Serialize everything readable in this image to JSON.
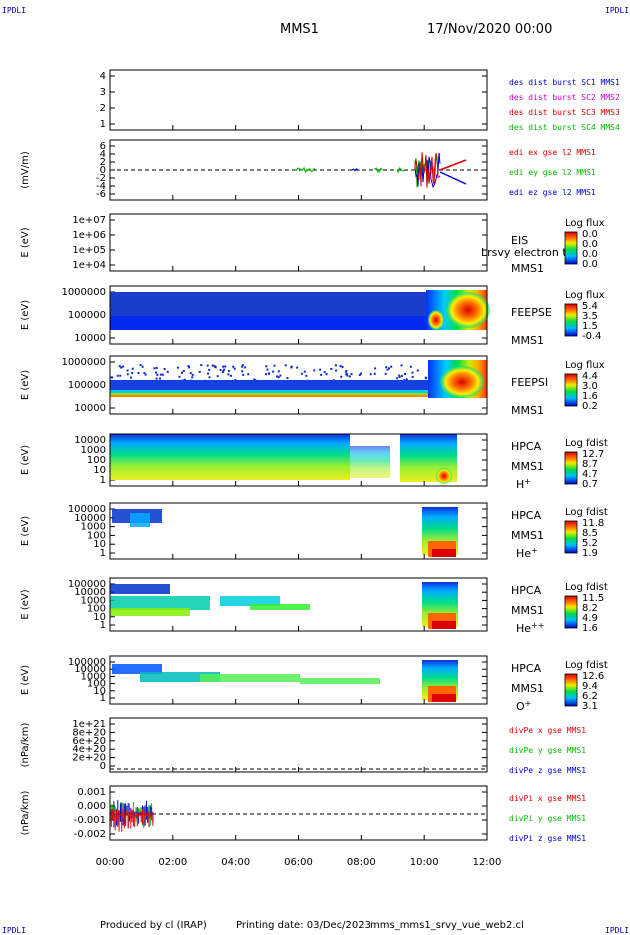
{
  "corners": {
    "tl": "IPDLI",
    "tr": "IPDLI",
    "bl": "IPDLI",
    "br": "IPDLI"
  },
  "header": {
    "spacecraft": "MMS1",
    "datetime": "17/Nov/2020 00:00"
  },
  "footer": {
    "produced": "Produced by cl (IRAP)",
    "printing": "Printing date: 03/Dec/2023",
    "file": "mms_mms1_srvy_vue_web2.cl"
  },
  "chart_data": [
    {
      "type": "line",
      "panel": "des-dist-burst",
      "ylabel": "",
      "yticks": [
        "4",
        "3",
        "2",
        "1"
      ],
      "legend": [
        {
          "name": "des dist burst SC1 MMS1",
          "color": "#0000cc"
        },
        {
          "name": "des dist burst SC2 MMS2",
          "color": "#cc00cc"
        },
        {
          "name": "des dist burst SC3 MMS3",
          "color": "#dd0000"
        },
        {
          "name": "des dist burst SC4 MMS4",
          "color": "#00bb00"
        }
      ]
    },
    {
      "type": "line",
      "panel": "edi-e-field",
      "ylabel": "(mV/m)",
      "yticks": [
        "6",
        "4",
        "2",
        "0",
        "-2",
        "-4",
        "-6"
      ],
      "legend": [
        {
          "name": "edi ex gse l2 MMS1",
          "color": "#dd0000"
        },
        {
          "name": "edi ey gse l2 MMS1",
          "color": "#00bb00"
        },
        {
          "name": "edi ez gse l2 MMS1",
          "color": "#0000cc"
        }
      ]
    },
    {
      "type": "heatmap",
      "panel": "eis",
      "ylabel": "E (eV)",
      "yticks": [
        "1e+07",
        "1e+06",
        "1e+05",
        "1e+04"
      ],
      "instrument": [
        "EIS",
        "MMS1"
      ],
      "overlay": "Lrsvy electron to",
      "cb_title": "Log flux",
      "cb_values": [
        "0.0",
        "0.0",
        "0.0",
        "0.0"
      ]
    },
    {
      "type": "heatmap",
      "panel": "feepse",
      "ylabel": "E (eV)",
      "yticks": [
        "1000000",
        "100000",
        "10000"
      ],
      "instrument": [
        "FEEPSE",
        "MMS1"
      ],
      "cb_title": "Log flux",
      "cb_values": [
        "5.4",
        "3.5",
        "1.5",
        "-0.4"
      ]
    },
    {
      "type": "heatmap",
      "panel": "feepsi",
      "ylabel": "E (eV)",
      "yticks": [
        "1000000",
        "100000",
        "10000"
      ],
      "instrument": [
        "FEEPSI",
        "MMS1"
      ],
      "cb_title": "Log flux",
      "cb_values": [
        "4.4",
        "3.0",
        "1.6",
        "0.2"
      ]
    },
    {
      "type": "heatmap",
      "panel": "hpca-h",
      "ylabel": "E (eV)",
      "yticks": [
        "10000",
        "1000",
        "100",
        "10",
        "1"
      ],
      "instrument": [
        "HPCA",
        "MMS1"
      ],
      "species": "H",
      "species_sup": "+",
      "cb_title": "Log fdist",
      "cb_values": [
        "12.7",
        "8.7",
        "4.7",
        "0.7"
      ]
    },
    {
      "type": "heatmap",
      "panel": "hpca-he1",
      "ylabel": "E (eV)",
      "yticks": [
        "100000",
        "10000",
        "1000",
        "100",
        "10",
        "1"
      ],
      "instrument": [
        "HPCA",
        "MMS1"
      ],
      "species": "He",
      "species_sup": "+",
      "cb_title": "Log fdist",
      "cb_values": [
        "11.8",
        "8.5",
        "5.2",
        "1.9"
      ]
    },
    {
      "type": "heatmap",
      "panel": "hpca-he2",
      "ylabel": "E (eV)",
      "yticks": [
        "100000",
        "10000",
        "1000",
        "100",
        "10",
        "1"
      ],
      "instrument": [
        "HPCA",
        "MMS1"
      ],
      "species": "He",
      "species_sup": "++",
      "cb_title": "Log fdist",
      "cb_values": [
        "11.5",
        "8.2",
        "4.9",
        "1.6"
      ]
    },
    {
      "type": "heatmap",
      "panel": "hpca-o",
      "ylabel": "E (eV)",
      "yticks": [
        "100000",
        "10000",
        "1000",
        "100",
        "10",
        "1"
      ],
      "instrument": [
        "HPCA",
        "MMS1"
      ],
      "species": "O",
      "species_sup": "+",
      "cb_title": "Log fdist",
      "cb_values": [
        "12.6",
        "9.4",
        "6.2",
        "3.1"
      ]
    },
    {
      "type": "line",
      "panel": "divpe",
      "ylabel": "(nPa/km)",
      "yticks": [
        "1e+21",
        "8e+20",
        "6e+20",
        "4e+20",
        "2e+20",
        "0"
      ],
      "legend": [
        {
          "name": "divPe x gse MMS1",
          "color": "#dd0000"
        },
        {
          "name": "divPe y gse MMS1",
          "color": "#00bb00"
        },
        {
          "name": "divPe z gse MMS1",
          "color": "#0000cc"
        }
      ]
    },
    {
      "type": "line",
      "panel": "divpi",
      "ylabel": "(nPa/km)",
      "yticks": [
        "0.001",
        "0.000",
        "-0.001",
        "-0.002"
      ],
      "legend": [
        {
          "name": "divPi x gse MMS1",
          "color": "#dd0000"
        },
        {
          "name": "divPi y gse MMS1",
          "color": "#00bb00"
        },
        {
          "name": "divPi z gse MMS1",
          "color": "#0000cc"
        }
      ],
      "xticks": [
        "00:00",
        "02:00",
        "04:00",
        "06:00",
        "08:00",
        "10:00",
        "12:00"
      ]
    }
  ]
}
